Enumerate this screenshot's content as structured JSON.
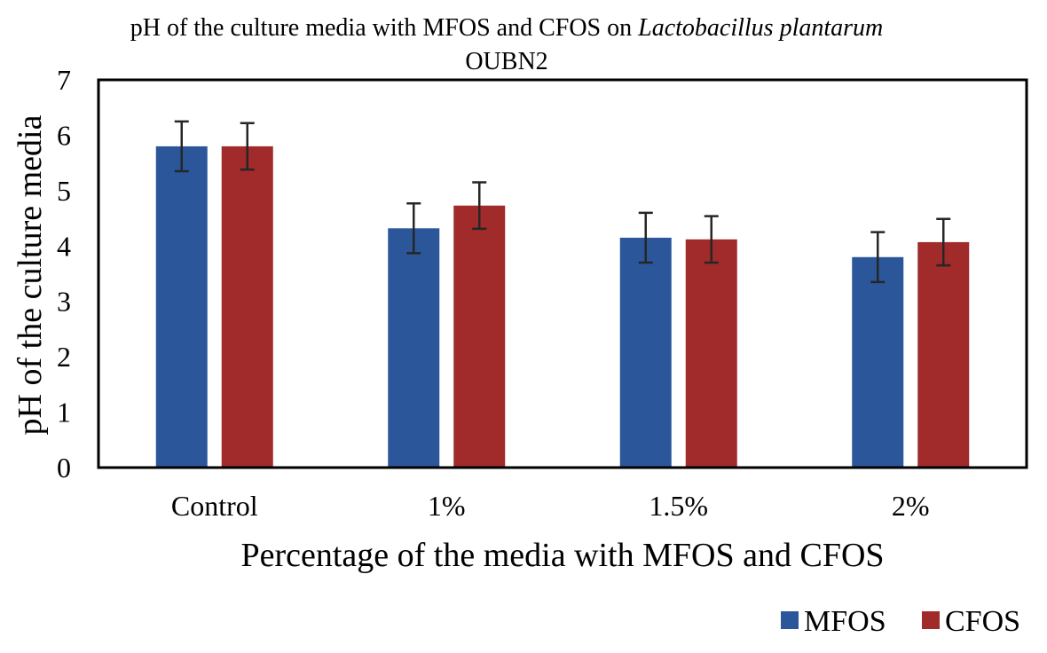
{
  "chart_data": {
    "type": "bar",
    "title": "pH of the culture media with MFOS and CFOS on",
    "title_italic": "Lactobacillus plantarum",
    "title_line2": "OUBN2",
    "xlabel": "Percentage of the media with MFOS and CFOS",
    "ylabel": "pH of the culture media",
    "categories": [
      "Control",
      "1%",
      "1.5%",
      "2%"
    ],
    "ylim": [
      0,
      7
    ],
    "yticks": [
      "0",
      "1",
      "2",
      "3",
      "4",
      "5",
      "6",
      "7"
    ],
    "grid": false,
    "legend_position": "bottom-right",
    "series": [
      {
        "name": "MFOS",
        "color": "#2B579A",
        "values": [
          5.8,
          4.32,
          4.15,
          3.8
        ],
        "errors": [
          0.45,
          0.45,
          0.45,
          0.45
        ]
      },
      {
        "name": "CFOS",
        "color": "#A12A2A",
        "values": [
          5.8,
          4.73,
          4.12,
          4.07
        ],
        "errors": [
          0.42,
          0.42,
          0.42,
          0.42
        ]
      }
    ],
    "error_bar_color": "#262626"
  }
}
